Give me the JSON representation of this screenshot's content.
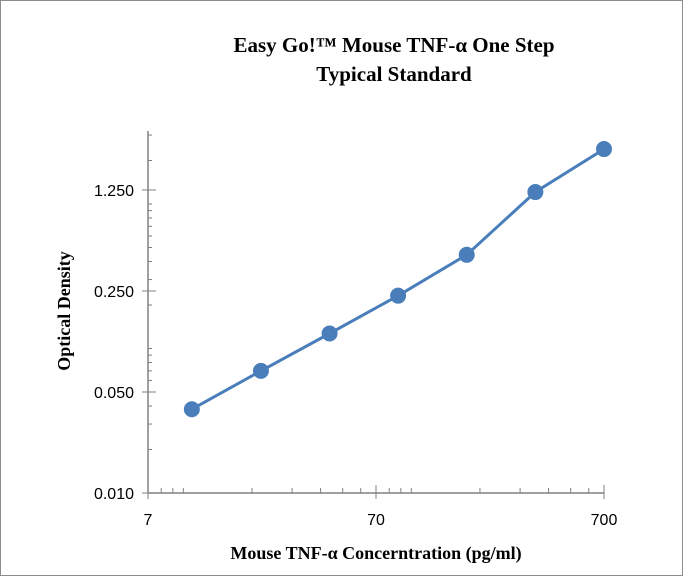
{
  "chart_data": {
    "type": "line",
    "title_line1": "Easy Go!™ Mouse TNF-α One Step",
    "title_line2": "Typical Standard",
    "xlabel": "Mouse  TNF-α Concerntration (pg/ml)",
    "ylabel": "Optical Density",
    "x_scale": "log",
    "y_scale": "log",
    "xlim": [
      7,
      700
    ],
    "ylim": [
      0.01,
      3.2
    ],
    "x_ticks": [
      7,
      70,
      700
    ],
    "x_tick_labels": [
      "7",
      "70",
      "700"
    ],
    "y_ticks": [
      0.01,
      0.05,
      0.25,
      1.25
    ],
    "y_tick_labels": [
      "0.010",
      "0.050",
      "0.250",
      "1.250"
    ],
    "grid": false,
    "legend": "none",
    "colors": {
      "series": "#4a7ebb",
      "axis": "#808080"
    },
    "series": [
      {
        "x": [
          10.9,
          21.9,
          43.8,
          87.5,
          175,
          350,
          700
        ],
        "y": [
          0.038,
          0.07,
          0.127,
          0.232,
          0.445,
          1.21,
          2.4
        ]
      }
    ]
  }
}
